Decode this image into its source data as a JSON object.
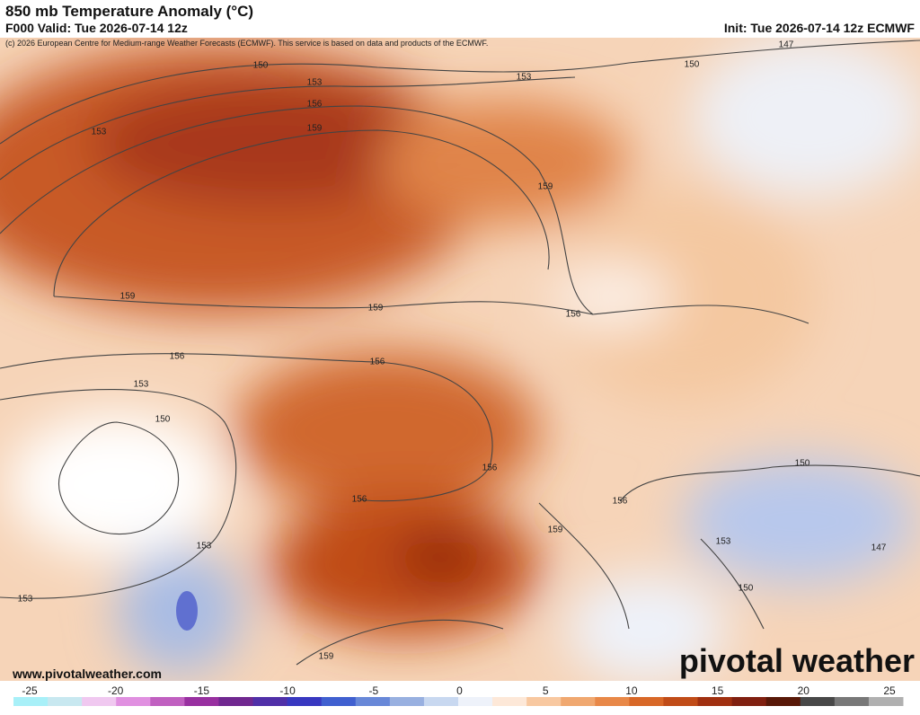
{
  "header": {
    "title": "850 mb Temperature Anomaly (°C)",
    "valid": "F000 Valid: Tue 2026-07-14 12z",
    "init": "Init: Tue 2026-07-14 12z ECMWF",
    "credit": "(c) 2026 European Centre for Medium-range Weather Forecasts (ECMWF). This service is based on data and products of the ECMWF."
  },
  "map": {
    "contour_labels": [
      "150",
      "153",
      "156",
      "159",
      "153",
      "153",
      "150",
      "147",
      "159",
      "159",
      "159",
      "156",
      "156",
      "156",
      "153",
      "150",
      "156",
      "156",
      "156",
      "159",
      "153",
      "153",
      "150",
      "150",
      "147",
      "153",
      "159"
    ]
  },
  "footer": {
    "website": "www.pivotalweather.com",
    "logo": "pivotal weather"
  },
  "colorbar": {
    "ticks": [
      -25,
      -20,
      -15,
      -10,
      -5,
      0,
      5,
      10,
      15,
      20,
      25
    ],
    "colors": [
      "#a8f0f8",
      "#c8e8f0",
      "#f0c8f0",
      "#e090e0",
      "#c060c0",
      "#9830a0",
      "#702890",
      "#5030a8",
      "#3838c0",
      "#4060d0",
      "#6888d8",
      "#98b0e0",
      "#c8d8f0",
      "#eef2fa",
      "#fde8d8",
      "#f8c8a0",
      "#f0a870",
      "#e88848",
      "#d86828",
      "#c04c18",
      "#a03010",
      "#802010",
      "#581808",
      "#484848",
      "#787878",
      "#b0b0b0"
    ]
  }
}
